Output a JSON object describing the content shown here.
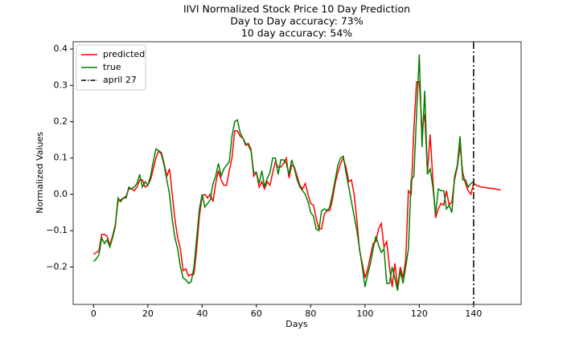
{
  "chart_data": {
    "type": "line",
    "title": "IIVI Normalized Stock Price 10 Day Prediction",
    "subtitle": [
      "Day to Day accuracy: 73%",
      "10 day accuracy: 54%"
    ],
    "xlabel": "Days",
    "ylabel": "Normalized Values",
    "x": [
      0,
      1,
      2,
      3,
      4,
      5,
      6,
      7,
      8,
      9,
      10,
      11,
      12,
      13,
      14,
      15,
      16,
      17,
      18,
      19,
      20,
      21,
      22,
      23,
      24,
      25,
      26,
      27,
      28,
      29,
      30,
      31,
      32,
      33,
      34,
      35,
      36,
      37,
      38,
      39,
      40,
      41,
      42,
      43,
      44,
      45,
      46,
      47,
      48,
      49,
      50,
      51,
      52,
      53,
      54,
      55,
      56,
      57,
      58,
      59,
      60,
      61,
      62,
      63,
      64,
      65,
      66,
      67,
      68,
      69,
      70,
      71,
      72,
      73,
      74,
      75,
      76,
      77,
      78,
      79,
      80,
      81,
      82,
      83,
      84,
      85,
      86,
      87,
      88,
      89,
      90,
      91,
      92,
      93,
      94,
      95,
      96,
      97,
      98,
      99,
      100,
      101,
      102,
      103,
      104,
      105,
      106,
      107,
      108,
      109,
      110,
      111,
      112,
      113,
      114,
      115,
      116,
      117,
      118,
      119,
      120,
      121,
      122,
      123,
      124,
      125,
      126,
      127,
      128,
      129,
      130,
      131,
      132,
      133,
      134,
      135,
      136,
      137,
      138,
      139,
      140,
      141,
      142,
      143,
      144,
      145,
      146,
      147,
      148,
      149,
      150
    ],
    "series": [
      {
        "name": "predicted",
        "color": "#ff0000",
        "values": [
          -0.165,
          -0.16,
          -0.155,
          -0.11,
          -0.11,
          -0.115,
          -0.14,
          -0.115,
          -0.085,
          -0.02,
          -0.015,
          -0.01,
          -0.005,
          0.015,
          0.015,
          0.01,
          0.02,
          0.04,
          0.04,
          0.02,
          0.025,
          0.04,
          0.07,
          0.1,
          0.12,
          0.115,
          0.085,
          0.05,
          0.07,
          0.0,
          -0.07,
          -0.12,
          -0.15,
          -0.21,
          -0.205,
          -0.225,
          -0.22,
          -0.22,
          -0.15,
          -0.06,
          -0.005,
          0.0,
          -0.01,
          0.0,
          -0.02,
          0.03,
          0.065,
          0.04,
          0.025,
          0.025,
          0.065,
          0.1,
          0.175,
          0.175,
          0.16,
          0.155,
          0.135,
          0.14,
          0.125,
          0.05,
          0.06,
          0.02,
          0.035,
          0.015,
          0.035,
          0.025,
          0.06,
          0.09,
          0.075,
          0.075,
          0.085,
          0.1,
          0.045,
          0.08,
          0.075,
          0.05,
          0.025,
          0.015,
          0.03,
          0.0,
          -0.025,
          -0.03,
          -0.065,
          -0.095,
          -0.095,
          -0.055,
          -0.045,
          -0.045,
          -0.015,
          0.03,
          0.06,
          0.085,
          0.1,
          0.075,
          0.035,
          0.04,
          0.0,
          -0.07,
          -0.155,
          -0.19,
          -0.23,
          -0.205,
          -0.17,
          -0.135,
          -0.13,
          -0.095,
          -0.08,
          -0.145,
          -0.13,
          -0.2,
          -0.255,
          -0.19,
          -0.255,
          -0.2,
          -0.23,
          -0.18,
          0.01,
          0.0,
          0.18,
          0.31,
          0.31,
          0.18,
          0.22,
          0.06,
          0.165,
          0.04,
          -0.065,
          -0.04,
          -0.025,
          -0.03,
          0.01,
          -0.03,
          -0.02,
          0.04,
          0.075,
          0.135,
          0.06,
          0.03,
          0.01,
          0.0,
          0.03,
          0.025,
          0.022,
          0.02,
          0.019,
          0.018,
          0.017,
          0.016,
          0.015,
          0.013,
          0.012
        ]
      },
      {
        "name": "true",
        "color": "#008000",
        "values": [
          -0.185,
          -0.178,
          -0.165,
          -0.12,
          -0.135,
          -0.125,
          -0.145,
          -0.12,
          -0.09,
          -0.01,
          -0.02,
          -0.01,
          -0.01,
          0.02,
          0.015,
          0.02,
          0.03,
          0.055,
          0.02,
          0.035,
          0.025,
          0.05,
          0.09,
          0.125,
          0.12,
          0.11,
          0.08,
          0.04,
          0.0,
          -0.07,
          -0.12,
          -0.15,
          -0.2,
          -0.23,
          -0.235,
          -0.245,
          -0.24,
          -0.2,
          -0.12,
          -0.04,
          0.0,
          -0.035,
          -0.025,
          -0.015,
          0.03,
          0.05,
          0.085,
          0.05,
          0.07,
          0.08,
          0.09,
          0.16,
          0.2,
          0.205,
          0.17,
          0.155,
          0.14,
          0.135,
          0.12,
          0.06,
          0.06,
          0.03,
          0.065,
          0.02,
          0.045,
          0.06,
          0.1,
          0.1,
          0.055,
          0.095,
          0.095,
          0.085,
          0.055,
          0.095,
          0.07,
          0.04,
          0.02,
          0.01,
          0.0,
          -0.02,
          -0.05,
          -0.06,
          -0.095,
          -0.1,
          -0.045,
          -0.04,
          -0.045,
          -0.035,
          0.0,
          0.04,
          0.08,
          0.1,
          0.105,
          0.06,
          0.02,
          -0.02,
          -0.06,
          -0.1,
          -0.15,
          -0.2,
          -0.255,
          -0.22,
          -0.19,
          -0.15,
          -0.115,
          -0.14,
          -0.16,
          -0.15,
          -0.245,
          -0.245,
          -0.2,
          -0.23,
          -0.265,
          -0.21,
          -0.245,
          -0.2,
          -0.15,
          0.04,
          0.05,
          0.22,
          0.385,
          0.13,
          0.285,
          0.055,
          0.07,
          0.02,
          -0.055,
          0.015,
          0.01,
          0.01,
          -0.04,
          -0.03,
          -0.05,
          0.05,
          0.08,
          0.16,
          0.04,
          0.04,
          0.02,
          0.03,
          0.035,
          null,
          null,
          null,
          null,
          null,
          null,
          null,
          null,
          null,
          null
        ]
      }
    ],
    "vline": {
      "x": 140,
      "name": "april 27",
      "color": "#000000"
    },
    "xlim": [
      -7.5,
      157.5
    ],
    "xticks": [
      0,
      20,
      40,
      60,
      80,
      100,
      120,
      140
    ],
    "ylim": [
      -0.303,
      0.42
    ],
    "yticks": [
      {
        "value": -0.2,
        "label": "−0.2"
      },
      {
        "value": -0.1,
        "label": "−0.1"
      },
      {
        "value": 0,
        "label": "0.0"
      },
      0.1,
      0.2,
      0.3,
      0.4
    ],
    "grid": false,
    "legend": "upper left"
  }
}
